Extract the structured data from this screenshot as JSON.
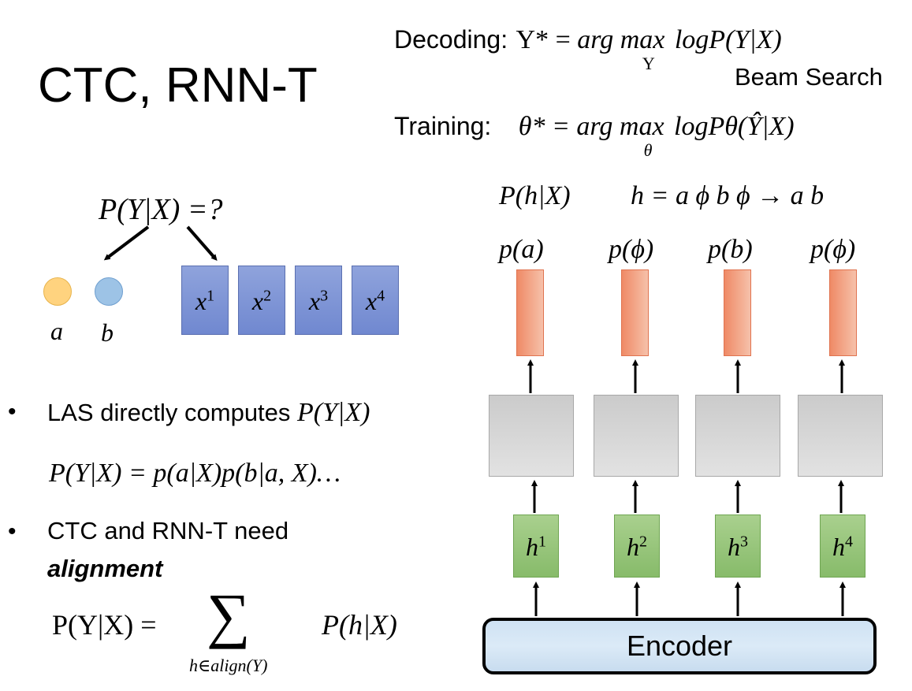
{
  "title": "CTC, RNN-T",
  "decoding": {
    "label": "Decoding:",
    "lhs": "Y* = ",
    "argmax_word": "arg max",
    "argmax_sub": "Y",
    "rhs": "logP(Y|X)",
    "note": "Beam Search"
  },
  "training": {
    "label": "Training:",
    "lhs": "θ* = ",
    "argmax_word": "arg max",
    "argmax_sub": "θ",
    "rhs": "logPθ(Ŷ|X)"
  },
  "question": "P(Y|X) =?",
  "tokens": [
    {
      "label": "a",
      "color": "#ffd37f"
    },
    {
      "label": "b",
      "color": "#9dc3e6"
    }
  ],
  "input_frames": [
    "x",
    "x",
    "x",
    "x"
  ],
  "input_frame_sups": [
    "1",
    "2",
    "3",
    "4"
  ],
  "bullets": [
    {
      "text": "LAS directly computes ",
      "math": "P(Y|X)"
    },
    {
      "text": "CTC and RNN-T need",
      "bold": "alignment"
    }
  ],
  "las_equation": "P(Y|X) = p(a|X)p(b|a, X)…",
  "sum_equation": {
    "lhs": "P(Y|X) = ",
    "sigma": "∑",
    "sub": "h∈align(Y)",
    "rhs": "P(h|X)"
  },
  "ph_header": "P(h|X)",
  "h_mapping": "h = a ϕ b ϕ → a b",
  "output_probs": [
    "p(a)",
    "p(ϕ)",
    "p(b)",
    "p(ϕ)"
  ],
  "hidden_states": [
    "h",
    "h",
    "h",
    "h"
  ],
  "hidden_sups": [
    "1",
    "2",
    "3",
    "4"
  ],
  "encoder_label": "Encoder"
}
